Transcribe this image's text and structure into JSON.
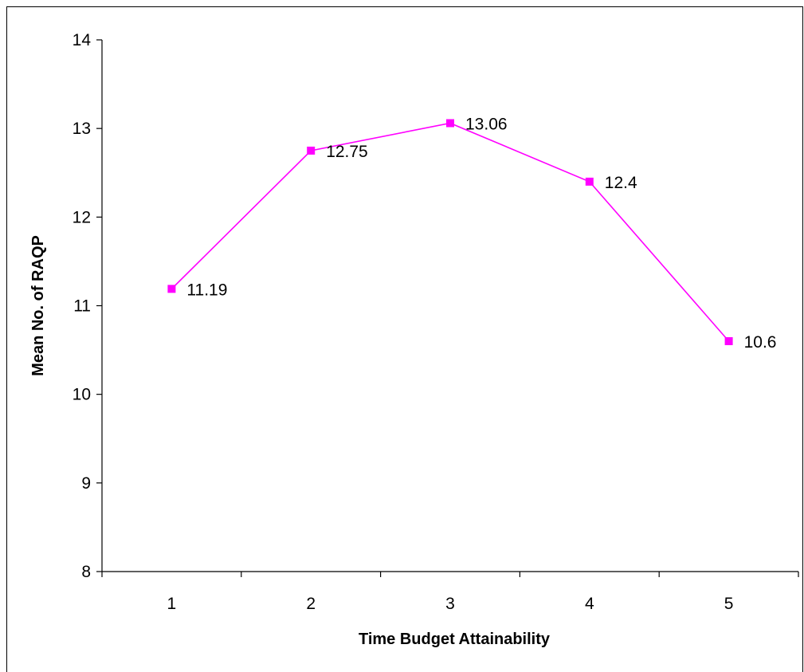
{
  "chart_data": {
    "type": "line",
    "title": "",
    "xlabel": "Time Budget Attainability",
    "ylabel": "Mean No. of RAQP",
    "categories": [
      "1",
      "2",
      "3",
      "4",
      "5"
    ],
    "series": [
      {
        "values": [
          11.19,
          12.75,
          13.06,
          12.4,
          10.6
        ],
        "data_labels": [
          "11.19",
          "12.75",
          "13.06",
          "12.4",
          "10.6"
        ],
        "color": "#ff00ff",
        "marker": "square"
      }
    ],
    "ylim": [
      8,
      14
    ],
    "yticks": [
      "8",
      "9",
      "10",
      "11",
      "12",
      "13",
      "14"
    ],
    "grid": false,
    "legend": "none"
  }
}
